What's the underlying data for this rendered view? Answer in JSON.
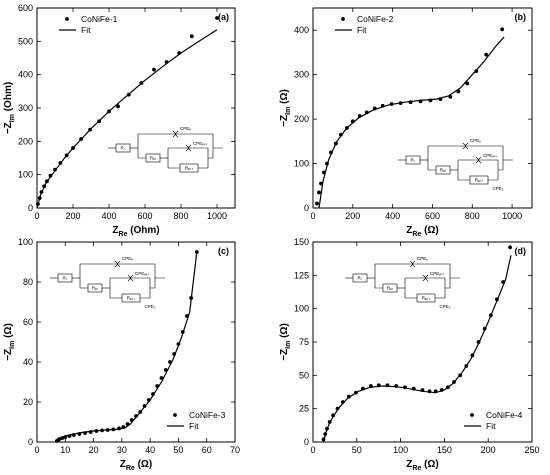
{
  "chart_data": [
    {
      "type": "scatter",
      "panel_label": "(a)",
      "xlabel_main": "Z",
      "xlabel_sub": "Re",
      "xlabel_unit": " (Ohm)",
      "ylabel_main": "−Z",
      "ylabel_sub": "Im",
      "ylabel_unit": " (Ohm)",
      "xlim": [
        0,
        1100
      ],
      "ylim": [
        0,
        600
      ],
      "xticks": [
        0,
        200,
        400,
        600,
        800,
        1000
      ],
      "yticks": [
        0,
        100,
        200,
        300,
        400,
        500,
        600
      ],
      "legend": {
        "data": "CoNiFe-1",
        "fit": "Fit",
        "position": "top-left"
      },
      "circuit": {
        "elements": [
          "Rₛ",
          "CPEₑ",
          "Rₑₜ",
          "CPEₑₖₛ",
          "Rₑₖₛ"
        ]
      },
      "series": [
        {
          "name": "CoNiFe-1",
          "kind": "data",
          "x": [
            5,
            15,
            25,
            40,
            55,
            75,
            100,
            130,
            165,
            200,
            245,
            295,
            345,
            400,
            450,
            510,
            580,
            650,
            720,
            790,
            860,
            1000
          ],
          "y": [
            12,
            30,
            48,
            65,
            80,
            97,
            115,
            135,
            158,
            180,
            207,
            235,
            260,
            290,
            305,
            340,
            375,
            415,
            438,
            465,
            515,
            570
          ]
        },
        {
          "name": "Fit",
          "kind": "line",
          "x": [
            0,
            20,
            50,
            100,
            150,
            200,
            300,
            400,
            500,
            600,
            700,
            800,
            900,
            1000
          ],
          "y": [
            0,
            40,
            75,
            112,
            148,
            180,
            238,
            290,
            337,
            383,
            425,
            465,
            500,
            535
          ]
        }
      ]
    },
    {
      "type": "scatter",
      "panel_label": "(b)",
      "xlabel_main": "Z",
      "xlabel_sub": "Re",
      "xlabel_unit": " (Ω)",
      "ylabel_main": "−Z",
      "ylabel_sub": "Im",
      "ylabel_unit": " (Ω)",
      "xlim": [
        0,
        1100
      ],
      "ylim": [
        0,
        450
      ],
      "xticks": [
        0,
        200,
        400,
        600,
        800,
        1000
      ],
      "yticks": [
        0,
        100,
        200,
        300,
        400
      ],
      "legend": {
        "data": "CoNiFe-2",
        "fit": "Fit",
        "position": "top-left"
      },
      "circuit": {
        "elements": [
          "Rₛ",
          "CPEₑ",
          "Rₑₜ",
          "CPEₑₖₛ",
          "Rₑₖₛ",
          "CPE₂"
        ]
      },
      "series": [
        {
          "name": "CoNiFe-2",
          "kind": "data",
          "x": [
            20,
            30,
            40,
            55,
            70,
            90,
            115,
            140,
            170,
            200,
            235,
            270,
            310,
            350,
            395,
            440,
            490,
            540,
            590,
            640,
            690,
            730,
            775,
            820,
            870,
            950
          ],
          "y": [
            10,
            35,
            55,
            80,
            100,
            125,
            145,
            165,
            180,
            195,
            207,
            215,
            224,
            230,
            234,
            236,
            238,
            240,
            242,
            245,
            250,
            262,
            280,
            308,
            345,
            402
          ]
        },
        {
          "name": "Fit",
          "kind": "line",
          "x": [
            30,
            50,
            80,
            120,
            170,
            230,
            300,
            380,
            460,
            540,
            620,
            680,
            740,
            800,
            860,
            920,
            960
          ],
          "y": [
            0,
            60,
            110,
            150,
            180,
            203,
            220,
            232,
            238,
            242,
            245,
            252,
            270,
            300,
            330,
            365,
            385
          ]
        }
      ]
    },
    {
      "type": "scatter",
      "panel_label": "(c)",
      "xlabel_main": "Z",
      "xlabel_sub": "Re",
      "xlabel_unit": " (Ω)",
      "ylabel_main": "−Z",
      "ylabel_sub": "Im",
      "ylabel_unit": " (Ω)",
      "xlim": [
        0,
        70
      ],
      "ylim": [
        0,
        100
      ],
      "xticks": [
        0,
        10,
        20,
        30,
        40,
        50,
        60,
        70
      ],
      "yticks": [
        0,
        20,
        40,
        60,
        80,
        100
      ],
      "legend": {
        "data": "CoNiFe-3",
        "fit": "Fit",
        "position": "bottom-right"
      },
      "circuit": {
        "elements": [
          "Rₛ",
          "CPEₑ",
          "Rₑₜ",
          "CPEₑₖₛ",
          "Rₑₖₛ",
          "CPE₂"
        ]
      },
      "series": [
        {
          "name": "CoNiFe-3",
          "kind": "data",
          "x": [
            7,
            7.5,
            8,
            9,
            10,
            11.5,
            13,
            15,
            17,
            19,
            21,
            23,
            25,
            27,
            29,
            30.5,
            32,
            33.5,
            35,
            36.5,
            38,
            39.5,
            41,
            42.5,
            44,
            45.5,
            47,
            48.5,
            50,
            51.5,
            53,
            54.5,
            56.5
          ],
          "y": [
            0.5,
            1,
            1.5,
            2,
            2.5,
            3,
            3.5,
            4,
            4.5,
            5,
            5.5,
            5.8,
            6,
            6.3,
            6.8,
            7.5,
            9,
            11,
            13,
            15,
            18,
            21,
            24,
            28,
            32,
            36,
            40,
            44,
            49,
            55,
            63,
            72,
            95
          ]
        },
        {
          "name": "Fit",
          "kind": "line",
          "x": [
            7,
            8,
            10,
            13,
            16,
            20,
            24,
            28,
            31,
            33,
            36,
            40,
            44,
            48,
            51,
            54,
            56.5
          ],
          "y": [
            0,
            1.5,
            3,
            4,
            4.8,
            5.5,
            6,
            6.3,
            7,
            9,
            14,
            21,
            30,
            41,
            52,
            65,
            95
          ]
        }
      ]
    },
    {
      "type": "scatter",
      "panel_label": "(d)",
      "xlabel_main": "Z",
      "xlabel_sub": "Re",
      "xlabel_unit": " (Ω)",
      "ylabel_main": "−Z",
      "ylabel_sub": "Im",
      "ylabel_unit": " (Ω)",
      "xlim": [
        0,
        250
      ],
      "ylim": [
        0,
        150
      ],
      "xticks": [
        0,
        50,
        100,
        150,
        200,
        250
      ],
      "yticks": [
        0,
        25,
        50,
        75,
        100,
        125,
        150
      ],
      "legend": {
        "data": "CoNiFe-4",
        "fit": "Fit",
        "position": "bottom-right"
      },
      "circuit": {
        "elements": [
          "Rₛ",
          "CPEₑ",
          "Rₑₜ",
          "CPEₑₖₛ",
          "Rₑₖₛ",
          "CPE₂"
        ]
      },
      "series": [
        {
          "name": "CoNiFe-4",
          "kind": "data",
          "x": [
            12,
            14,
            16,
            19,
            23,
            28,
            34,
            41,
            49,
            57,
            66,
            75,
            85,
            95,
            105,
            115,
            125,
            133,
            140,
            147,
            154,
            161,
            168,
            175,
            182,
            189,
            196,
            203,
            210,
            217,
            225
          ],
          "y": [
            2,
            6,
            10,
            15,
            20,
            25,
            30,
            34,
            37,
            40,
            42,
            42.5,
            42.5,
            42,
            41,
            40,
            39,
            38,
            38,
            39,
            41,
            45,
            50,
            57,
            65,
            75,
            85,
            95,
            107,
            120,
            146
          ]
        },
        {
          "name": "Fit",
          "kind": "line",
          "x": [
            12,
            16,
            22,
            30,
            40,
            52,
            65,
            80,
            95,
            110,
            125,
            140,
            150,
            160,
            170,
            180,
            190,
            200,
            210,
            220,
            226
          ],
          "y": [
            0,
            10,
            18,
            26,
            33,
            38,
            41,
            42,
            41.5,
            40,
            38,
            37,
            39,
            44,
            52,
            62,
            75,
            90,
            106,
            122,
            140
          ]
        }
      ]
    }
  ]
}
